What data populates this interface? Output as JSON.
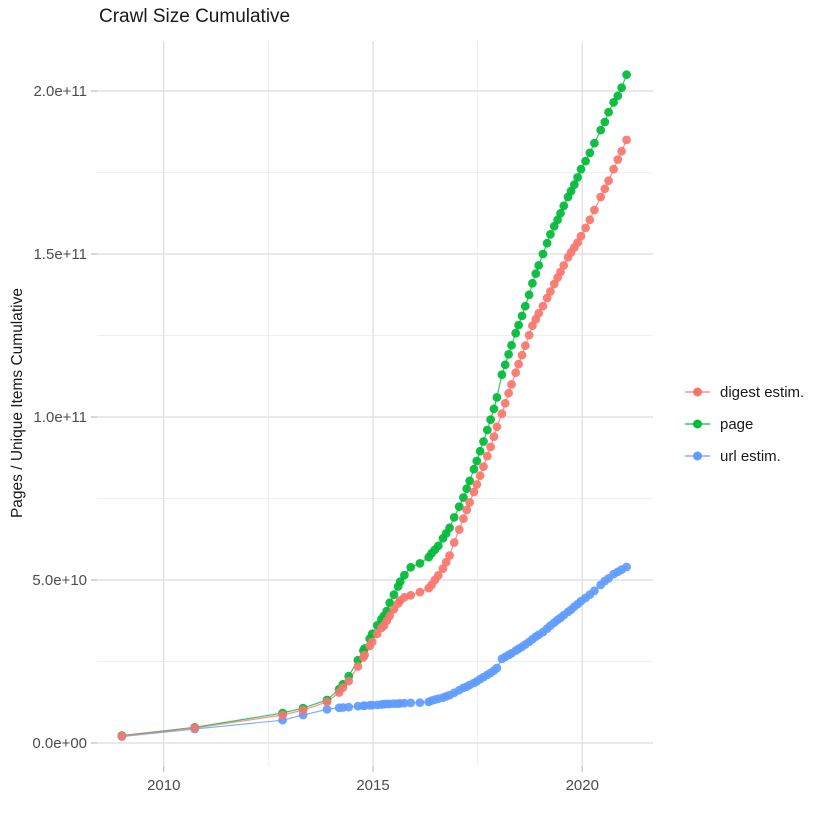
{
  "chart_data": {
    "type": "scatter",
    "title": "Crawl Size Cumulative",
    "xlabel": "",
    "ylabel": "Pages / Unique Items Cumulative",
    "legend_position": "right",
    "grid": true,
    "background": "#ffffff",
    "gridline_major_color": "#e2e2e2",
    "gridline_minor_color": "#efefef",
    "tick_color": "#c8c8c8",
    "axis_text_color": "#4d4d4d",
    "x_axis": {
      "ticks": [
        2010,
        2015,
        2020
      ],
      "tick_labels": [
        "2010",
        "2015",
        "2020"
      ],
      "minor_ticks": [
        2012.5,
        2017.5
      ],
      "range": [
        2008.4,
        2021.66
      ]
    },
    "y_axis": {
      "ticks": [
        0,
        50,
        100,
        150,
        200
      ],
      "tick_labels": [
        "0.0e+00",
        "5.0e+10",
        "1.0e+11",
        "1.5e+11",
        "2.0e+11"
      ],
      "minor_ticks": [
        25,
        75,
        125,
        175
      ],
      "range": [
        -7,
        215.3
      ],
      "values_unit": "1e9"
    },
    "x": [
      2009.0,
      2010.74,
      2012.84,
      2013.33,
      2013.9,
      2014.19,
      2014.28,
      2014.42,
      2014.64,
      2014.77,
      2014.8,
      2014.92,
      2014.98,
      2015.1,
      2015.2,
      2015.26,
      2015.33,
      2015.4,
      2015.5,
      2015.6,
      2015.65,
      2015.75,
      2015.9,
      2016.12,
      2016.33,
      2016.4,
      2016.48,
      2016.56,
      2016.67,
      2016.75,
      2016.83,
      2016.94,
      2017.06,
      2017.16,
      2017.24,
      2017.31,
      2017.41,
      2017.48,
      2017.56,
      2017.64,
      2017.73,
      2017.81,
      2017.89,
      2017.96,
      2018.08,
      2018.16,
      2018.24,
      2018.31,
      2018.41,
      2018.48,
      2018.56,
      2018.64,
      2018.73,
      2018.81,
      2018.89,
      2018.96,
      2019.06,
      2019.16,
      2019.24,
      2019.33,
      2019.41,
      2019.48,
      2019.56,
      2019.66,
      2019.73,
      2019.81,
      2019.89,
      2019.97,
      2020.08,
      2020.18,
      2020.29,
      2020.44,
      2020.54,
      2020.63,
      2020.75,
      2020.85,
      2020.94,
      2021.06
    ],
    "series": [
      {
        "name": "digest estim.",
        "color": "#F8766D",
        "values": [
          2.1,
          4.6,
          8.6,
          10.1,
          12.6,
          15.5,
          17.0,
          19.0,
          23.5,
          26.3,
          27.0,
          29.8,
          31.0,
          33.5,
          35.3,
          36.0,
          37.5,
          39.0,
          41.0,
          42.8,
          43.7,
          44.7,
          45.3,
          46.3,
          47.5,
          48.5,
          50.0,
          51.4,
          53.5,
          55.5,
          57.5,
          61.5,
          65.5,
          68.8,
          71.5,
          73.8,
          77.0,
          79.3,
          82.0,
          84.8,
          88.0,
          90.8,
          94.0,
          97.0,
          101.0,
          104.2,
          107.3,
          110.0,
          113.6,
          116.2,
          119.0,
          121.9,
          125.1,
          128.0,
          130.0,
          131.8,
          134.0,
          136.5,
          138.5,
          140.8,
          142.8,
          144.5,
          146.5,
          149.0,
          150.5,
          152.0,
          153.5,
          155.5,
          158.0,
          160.5,
          163.5,
          167.5,
          170.0,
          172.5,
          176.0,
          179.0,
          181.5,
          185.0
        ]
      },
      {
        "name": "page",
        "color": "#00BA38",
        "values": [
          2.3,
          4.8,
          9.2,
          10.7,
          13.2,
          16.5,
          18.0,
          20.5,
          25.4,
          28.3,
          29.0,
          32.0,
          33.5,
          36.1,
          38.0,
          39.0,
          40.5,
          43.0,
          45.5,
          48.0,
          49.5,
          51.5,
          53.9,
          55.1,
          57.0,
          58.2,
          59.3,
          60.5,
          62.8,
          64.3,
          66.0,
          69.2,
          72.5,
          75.3,
          78.0,
          80.4,
          84.0,
          86.5,
          89.5,
          92.5,
          96.0,
          99.2,
          102.5,
          106.0,
          113.0,
          116.0,
          119.2,
          122.0,
          125.7,
          128.2,
          131.0,
          134.0,
          137.5,
          141.0,
          144.0,
          146.5,
          150.0,
          153.3,
          156.0,
          158.5,
          160.5,
          162.5,
          164.8,
          167.5,
          169.3,
          171.3,
          173.5,
          176.0,
          178.5,
          181.0,
          184.0,
          188.0,
          190.5,
          193.5,
          196.5,
          198.5,
          201.0,
          205.0
        ]
      },
      {
        "name": "url estim.",
        "color": "#619CFF",
        "values": [
          2.0,
          4.3,
          7.0,
          8.6,
          10.3,
          10.8,
          10.9,
          11.0,
          11.3,
          11.4,
          11.45,
          11.55,
          11.6,
          11.7,
          11.8,
          11.9,
          11.95,
          12.0,
          12.05,
          12.1,
          12.15,
          12.2,
          12.3,
          12.4,
          12.6,
          13.0,
          13.3,
          13.6,
          13.9,
          14.3,
          14.7,
          15.4,
          16.2,
          16.9,
          17.3,
          17.8,
          18.4,
          18.9,
          19.6,
          20.2,
          20.9,
          21.5,
          22.2,
          23.0,
          25.8,
          26.4,
          27.0,
          27.5,
          28.3,
          28.9,
          29.5,
          30.2,
          31.0,
          31.8,
          32.6,
          33.2,
          34.0,
          35.1,
          36.0,
          36.9,
          37.8,
          38.4,
          39.2,
          40.2,
          40.9,
          41.8,
          42.6,
          43.5,
          44.5,
          45.5,
          46.7,
          48.5,
          49.7,
          50.5,
          51.8,
          52.5,
          53.2,
          54.0
        ]
      }
    ]
  }
}
